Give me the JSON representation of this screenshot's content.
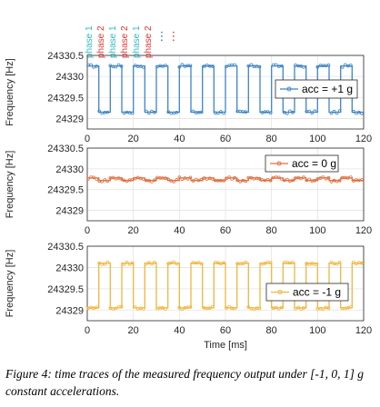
{
  "phase_labels": [
    {
      "text": "phase 1",
      "color": "#2eb8c8"
    },
    {
      "text": "phase 2",
      "color": "#e8322e"
    },
    {
      "text": "phase 1",
      "color": "#2eb8c8"
    },
    {
      "text": "phase 2",
      "color": "#e8322e"
    },
    {
      "text": "phase 1",
      "color": "#2eb8c8"
    },
    {
      "text": "phase 2",
      "color": "#e8322e"
    }
  ],
  "phase_ellipsis": [
    {
      "text": "⋮",
      "color": "#2e6fd8"
    },
    {
      "text": "⋮",
      "color": "#e8322e"
    }
  ],
  "caption": "Figure 4: time traces of the measured frequency output under [-1, 0, 1] g constant accelerations.",
  "chart_data": [
    {
      "type": "line",
      "xlabel": "",
      "ylabel": "Frequency [Hz]",
      "xlim": [
        0,
        120
      ],
      "ylim": [
        24328.75,
        24330.5
      ],
      "xticks": [
        "0",
        "20",
        "40",
        "60",
        "80",
        "100",
        "120"
      ],
      "yticks": [
        "24329",
        "24329.5",
        "24330",
        "24330.5"
      ],
      "grid": true,
      "legend": "acc = +1 g",
      "legend_position": "right",
      "color": "#3d85c6",
      "series": [
        {
          "name": "acc = +1 g",
          "square_wave": {
            "period_ms": 10,
            "high": 24330.25,
            "low": 24329.15,
            "high_first": true
          }
        }
      ]
    },
    {
      "type": "line",
      "xlabel": "",
      "ylabel": "Frequency [Hz]",
      "xlim": [
        0,
        120
      ],
      "ylim": [
        24328.75,
        24330.5
      ],
      "xticks": [
        "0",
        "20",
        "40",
        "60",
        "80",
        "100",
        "120"
      ],
      "yticks": [
        "24329",
        "24329.5",
        "24330",
        "24330.5"
      ],
      "grid": true,
      "legend": "acc = 0 g",
      "legend_position": "top-right",
      "color": "#e07040",
      "series": [
        {
          "name": "acc = 0 g",
          "square_wave": {
            "period_ms": 10,
            "high": 24329.78,
            "low": 24329.72,
            "high_first": true
          }
        }
      ]
    },
    {
      "type": "line",
      "xlabel": "Time [ms]",
      "ylabel": "Frequency [Hz]",
      "xlim": [
        0,
        120
      ],
      "ylim": [
        24328.75,
        24330.5
      ],
      "xticks": [
        "0",
        "20",
        "40",
        "60",
        "80",
        "100",
        "120"
      ],
      "yticks": [
        "24329",
        "24329.5",
        "24330",
        "24330.5"
      ],
      "grid": true,
      "legend": "acc = -1 g",
      "legend_position": "right",
      "color": "#f2b53c",
      "series": [
        {
          "name": "acc = -1 g",
          "square_wave": {
            "period_ms": 10,
            "high": 24330.1,
            "low": 24329.05,
            "high_first": false
          }
        }
      ]
    }
  ]
}
